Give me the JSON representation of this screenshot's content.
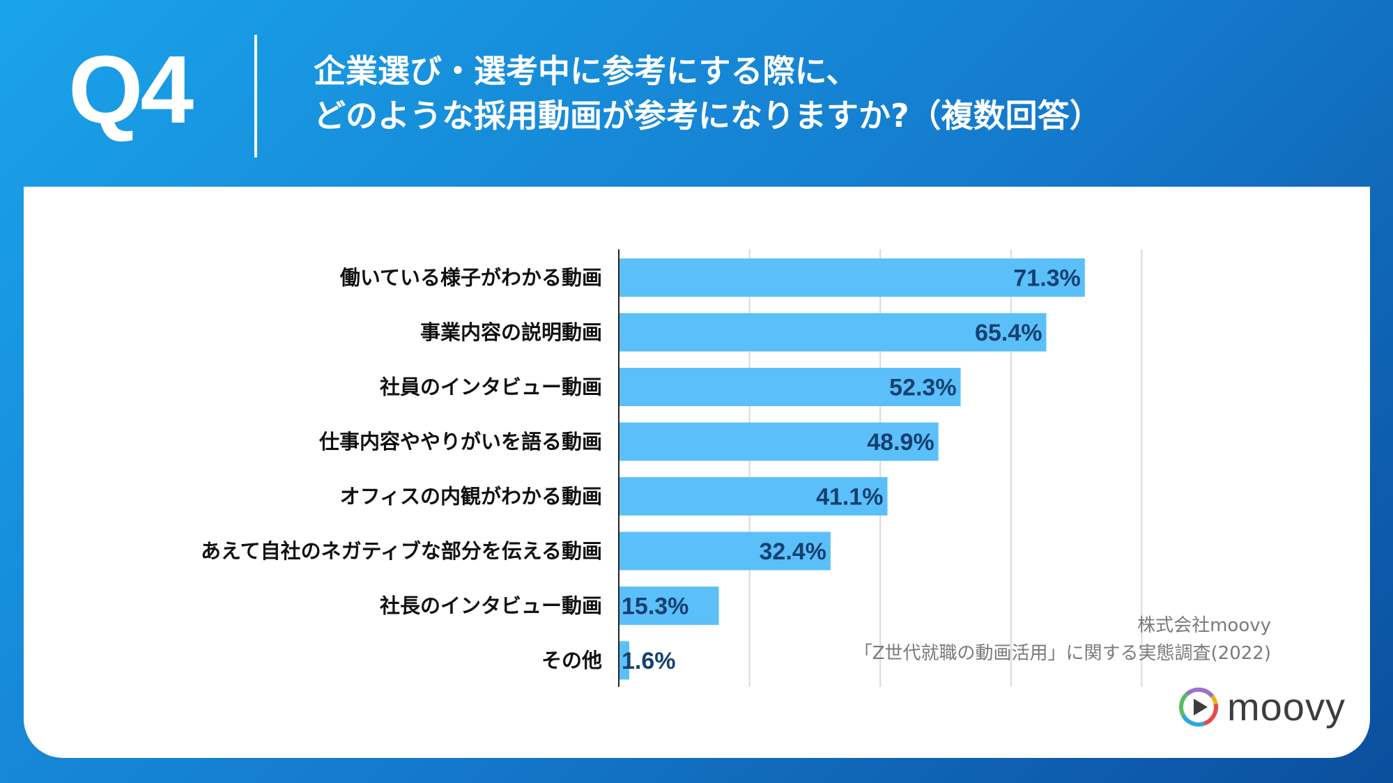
{
  "header": {
    "question_number": "Q4",
    "title_line1": "企業選び・選考中に参考にする際に、",
    "title_line2": "どのような採用動画が参考になりますか?（複数回答）"
  },
  "chart_data": {
    "type": "bar",
    "orientation": "horizontal",
    "categories": [
      "働いている様子がわかる動画",
      "事業内容の説明動画",
      "社員のインタビュー動画",
      "仕事内容ややりがいを語る動画",
      "オフィスの内観がわかる動画",
      "あえて自社のネガティブな部分を伝える動画",
      "社長のインタビュー動画",
      "その他"
    ],
    "values": [
      71.3,
      65.4,
      52.3,
      48.9,
      41.1,
      32.4,
      15.3,
      1.6
    ],
    "value_labels": [
      "71.3%",
      "65.4%",
      "52.3%",
      "48.9%",
      "41.1%",
      "32.4%",
      "15.3%",
      "1.6%"
    ],
    "xlim": [
      0,
      100
    ],
    "gridlines": [
      20,
      40,
      60,
      80
    ],
    "grid": true,
    "bar_color": "#5bbffa"
  },
  "source": {
    "line1": "株式会社moovy",
    "line2": "「Z世代就職の動画活用」に関する実態調査(2022)"
  },
  "logo": {
    "text": "moovy",
    "icon": "play-circle-icon"
  },
  "colors": {
    "background_start": "#1aa3ea",
    "background_end": "#0b4f9e",
    "bar": "#5bbffa",
    "value_text": "#14406f"
  }
}
